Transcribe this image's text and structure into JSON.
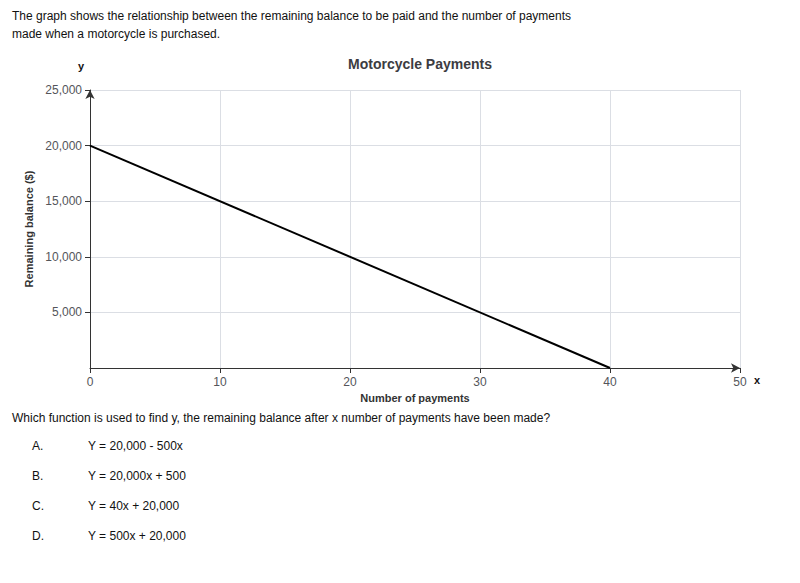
{
  "chart_data": {
    "type": "line",
    "title": "Motorcycle Payments",
    "x_label": "Number of payments",
    "y_label": "Remaining balance ($)",
    "x": [
      0,
      40
    ],
    "values": [
      20000,
      0
    ],
    "color": "#000000",
    "xlim": [
      0,
      50
    ],
    "xticks": [
      0,
      10,
      20,
      30,
      40,
      50
    ],
    "ylim": [
      0,
      25000
    ],
    "yticks": [
      {
        "value": 5000,
        "label": "5,000"
      },
      {
        "value": 10000,
        "label": "10,000"
      },
      {
        "value": 15000,
        "label": "15,000"
      },
      {
        "value": 20000,
        "label": "20,000"
      },
      {
        "value": 25000,
        "label": "25,000"
      }
    ],
    "grid": true,
    "x_end_label": "x",
    "y_end_label": "y",
    "description": [
      "The graph shows the relationship between the remaining balance to be paid and the number of payments",
      "made when a motorcycle is purchased."
    ],
    "question": "Which function is used to find y, the remaining balance after x number of payments have been made?",
    "choices": [
      {
        "label": "A.",
        "text": "Y = 20,000 - 500x"
      },
      {
        "label": "B.",
        "text": "Y = 20,000x + 500"
      },
      {
        "label": "C.",
        "text": "Y = 40x + 20,000"
      },
      {
        "label": "D.",
        "text": "Y = 500x + 20,000"
      }
    ]
  }
}
